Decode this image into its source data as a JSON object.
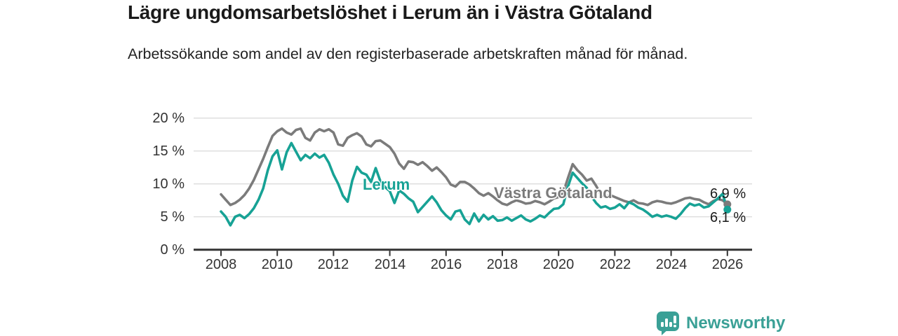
{
  "header": {
    "title": "Lägre ungdomsarbetslöshet i Lerum än i Västra Götaland",
    "subtitle": "Arbetssökande som andel av den registerbaserade arbetskraften månad för månad."
  },
  "axis": {
    "y_labels": [
      "20 %",
      "15 %",
      "10 %",
      "5 %",
      "0 %"
    ],
    "x_labels": [
      "2008",
      "2010",
      "2012",
      "2014",
      "2016",
      "2018",
      "2020",
      "2022",
      "2024",
      "2026"
    ]
  },
  "chart_data": {
    "type": "line",
    "title": "Lägre ungdomsarbetslöshet i Lerum än i Västra Götaland",
    "subtitle": "Arbetssökande som andel av den registerbaserade arbetskraften månad för månad.",
    "unit": "%",
    "grid": true,
    "ylim": [
      0,
      20
    ],
    "y_ticks": [
      0,
      5,
      10,
      15,
      20
    ],
    "x_tick_years": [
      2008,
      2010,
      2012,
      2014,
      2016,
      2018,
      2020,
      2022,
      2024,
      2026
    ],
    "x_start_year": 2008,
    "x_step_months": 2,
    "colors": {
      "gridline": "#dcdcdc",
      "axis": "#333333"
    },
    "series": [
      {
        "name": "Västra Götaland",
        "color": "#7b7b7b",
        "end_value": 6.9,
        "end_label": "6,9 %",
        "values": [
          8.4,
          7.6,
          6.8,
          7.1,
          7.6,
          8.3,
          9.3,
          10.6,
          12.2,
          13.8,
          15.6,
          17.3,
          18.0,
          18.4,
          17.8,
          17.5,
          18.2,
          18.4,
          17.0,
          16.6,
          17.8,
          18.3,
          18.0,
          18.3,
          17.8,
          16.0,
          15.8,
          17.0,
          17.4,
          17.7,
          17.2,
          16.0,
          15.7,
          16.5,
          16.6,
          16.1,
          15.6,
          14.6,
          13.1,
          12.3,
          13.4,
          13.3,
          12.9,
          13.3,
          12.7,
          12.0,
          12.5,
          11.8,
          11.0,
          9.9,
          9.6,
          10.3,
          10.3,
          9.9,
          9.3,
          8.6,
          8.2,
          8.6,
          8.1,
          7.5,
          7.0,
          6.8,
          7.2,
          7.5,
          7.3,
          7.0,
          7.1,
          7.4,
          7.2,
          6.9,
          7.3,
          7.8,
          8.0,
          8.7,
          10.9,
          13.0,
          12.1,
          11.4,
          10.5,
          10.8,
          9.7,
          8.4,
          8.0,
          8.3,
          8.0,
          7.7,
          7.4,
          7.2,
          7.5,
          7.1,
          7.0,
          6.8,
          7.2,
          7.4,
          7.3,
          7.1,
          7.0,
          7.2,
          7.5,
          7.8,
          7.9,
          7.7,
          7.6,
          7.2,
          6.9,
          7.4,
          7.7,
          7.5,
          6.9
        ]
      },
      {
        "name": "Lerum",
        "color": "#17a295",
        "end_value": 6.1,
        "end_label": "6,1 %",
        "values": [
          5.8,
          5.0,
          3.7,
          5.0,
          5.3,
          4.8,
          5.4,
          6.3,
          7.6,
          9.3,
          12.1,
          14.2,
          15.1,
          12.2,
          14.8,
          16.2,
          14.9,
          13.6,
          14.4,
          13.9,
          14.6,
          14.0,
          14.4,
          13.2,
          11.4,
          10.0,
          8.2,
          7.3,
          10.5,
          12.6,
          11.7,
          11.4,
          10.3,
          12.4,
          10.4,
          9.5,
          8.9,
          7.1,
          9.0,
          8.5,
          7.8,
          7.3,
          5.7,
          6.5,
          7.3,
          8.1,
          7.2,
          6.0,
          5.2,
          4.6,
          5.8,
          6.0,
          4.6,
          3.9,
          5.5,
          4.3,
          5.3,
          4.6,
          5.1,
          4.4,
          4.5,
          4.9,
          4.4,
          4.8,
          5.2,
          4.6,
          4.3,
          4.7,
          5.2,
          4.9,
          5.6,
          6.2,
          6.3,
          6.9,
          9.6,
          11.7,
          10.9,
          10.1,
          9.4,
          8.1,
          7.1,
          6.4,
          6.6,
          6.2,
          6.4,
          6.9,
          6.3,
          7.2,
          6.9,
          6.4,
          6.1,
          5.6,
          5.0,
          5.3,
          5.0,
          5.2,
          5.0,
          4.7,
          5.4,
          6.3,
          7.0,
          6.7,
          6.9,
          6.4,
          6.6,
          7.2,
          7.8,
          8.5,
          6.1
        ]
      }
    ]
  },
  "branding": {
    "logo_text": "Newsworthy",
    "logo_icon": "bar-chart-speech-bubble-icon",
    "brand_color": "#3aa096"
  }
}
